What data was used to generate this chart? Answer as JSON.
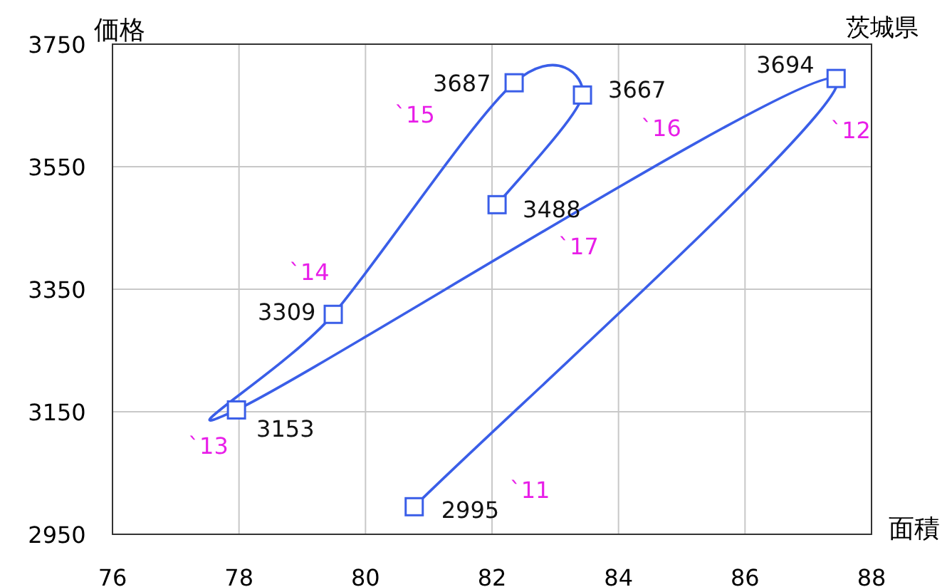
{
  "chart_data": {
    "type": "line",
    "title": "茨城県",
    "xlabel": "面積",
    "ylabel": "価格",
    "series": [
      {
        "color": "#3a5ee8",
        "x": [
          80.77,
          87.44,
          77.96,
          79.49,
          82.35,
          83.43,
          82.08
        ],
        "values": [
          2995,
          3694,
          3153,
          3309,
          3687,
          3667,
          3488
        ]
      }
    ],
    "marker": "square",
    "data_labels": true,
    "grid": true,
    "xlim": [
      76,
      88
    ],
    "xticks": [
      76,
      78,
      80,
      82,
      84,
      86,
      88
    ],
    "ylim": [
      2950,
      3750
    ],
    "yticks": [
      2950,
      3150,
      3350,
      3550,
      3750
    ],
    "annotations": [
      "`11",
      "`12",
      "`13",
      "`14",
      "`15",
      "`16",
      "`17"
    ]
  }
}
